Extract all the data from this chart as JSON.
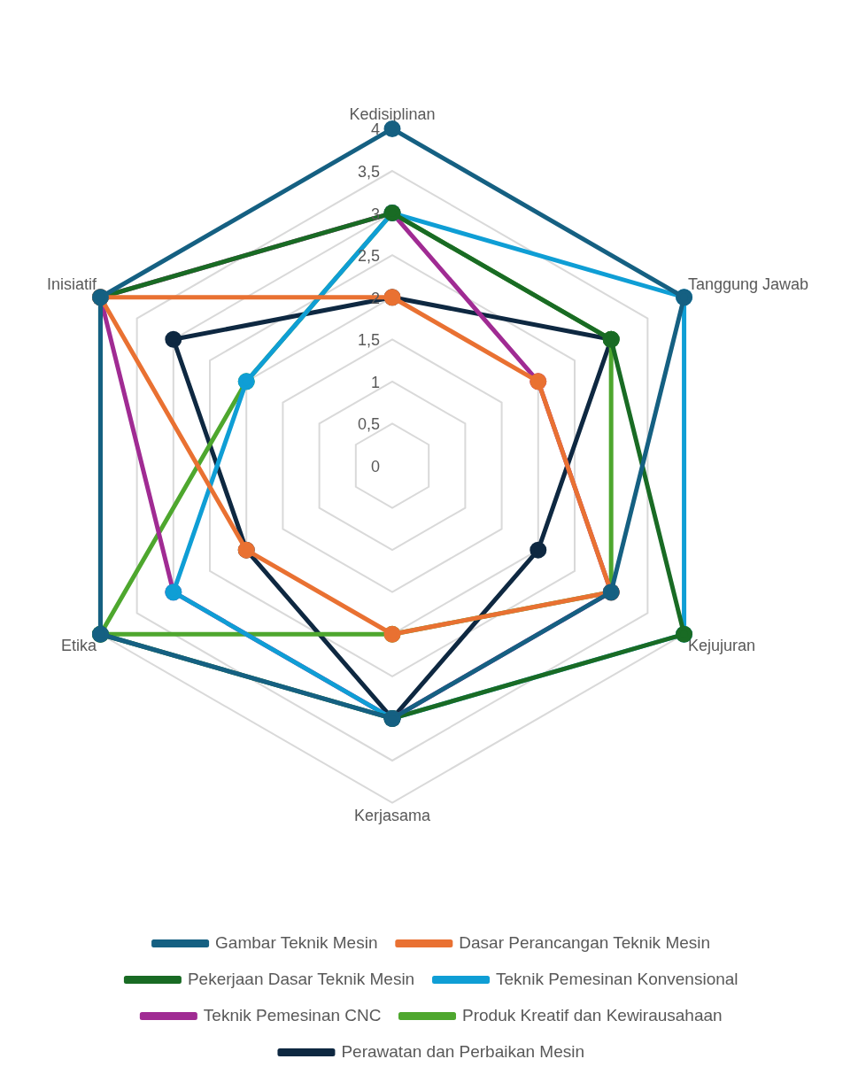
{
  "chart_data": {
    "type": "radar",
    "categories": [
      "Kedisiplinan",
      "Tanggung Jawab",
      "Kejujuran",
      "Kerjasama",
      "Etika",
      "Inisiatif"
    ],
    "series": [
      {
        "name": "Gambar Teknik Mesin",
        "color": "#156082",
        "values": [
          4,
          4,
          3,
          3,
          4,
          4
        ]
      },
      {
        "name": "Dasar Perancangan Teknik Mesin",
        "color": "#e97132",
        "values": [
          2,
          2,
          3,
          2,
          2,
          4
        ]
      },
      {
        "name": "Pekerjaan Dasar Teknik Mesin",
        "color": "#196b24",
        "values": [
          3,
          3,
          4,
          3,
          4,
          4
        ]
      },
      {
        "name": "Teknik Pemesinan Konvensional",
        "color": "#0f9ed5",
        "values": [
          3,
          4,
          4,
          3,
          3,
          2
        ]
      },
      {
        "name": "Teknik Pemesinan CNC",
        "color": "#a02b93",
        "values": [
          3,
          2,
          3,
          3,
          3,
          4
        ]
      },
      {
        "name": "Produk Kreatif dan Kewirausahaan",
        "color": "#4ea72e",
        "values": [
          3,
          3,
          3,
          2,
          4,
          2
        ]
      },
      {
        "name": "Perawatan dan Perbaikan Mesin",
        "color": "#0e2841",
        "values": [
          2,
          3,
          2,
          3,
          2,
          3
        ]
      }
    ],
    "ylim": [
      0,
      4
    ],
    "yticks": [
      0,
      {
        "value": 0.5,
        "label": "0,5"
      },
      1,
      {
        "value": 1.5,
        "label": "1,5"
      },
      2,
      {
        "value": 2.5,
        "label": "2,5"
      },
      3,
      {
        "value": 3.5,
        "label": "3,5"
      },
      4
    ],
    "grid": true,
    "legend": "bottom",
    "marker": "circle",
    "line_style": "solid"
  }
}
